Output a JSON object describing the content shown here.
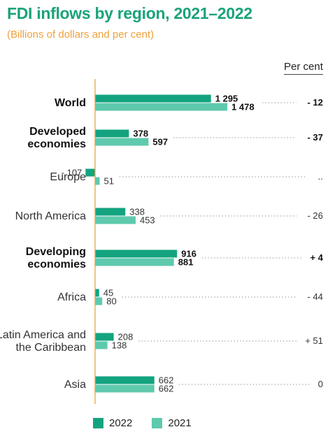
{
  "header": {
    "title": "FDI inflows by region, 2021–2022",
    "subtitle": "(Billions of dollars and per cent)",
    "pct_column_label": "Per cent"
  },
  "colors": {
    "s2022": "#14a37f",
    "s2021": "#5fc9ad",
    "axis": "#f0a13a",
    "dots": "#9a9a9a",
    "title": "#1aa37a"
  },
  "legend": [
    {
      "label": "2022",
      "color": "#14a37f"
    },
    {
      "label": "2021",
      "color": "#5fc9ad"
    }
  ],
  "chart_data": {
    "type": "bar",
    "orientation": "horizontal",
    "title": "FDI inflows by region, 2021–2022",
    "subtitle": "(Billions of dollars and per cent)",
    "xlim": [
      -107,
      1478
    ],
    "categories": [
      {
        "lines": [
          "World"
        ],
        "bold": true
      },
      {
        "lines": [
          "Developed",
          "economies"
        ],
        "bold": true
      },
      {
        "lines": [
          "Europe"
        ],
        "bold": false
      },
      {
        "lines": [
          "North America"
        ],
        "bold": false
      },
      {
        "lines": [
          "Developing",
          "economies"
        ],
        "bold": true
      },
      {
        "lines": [
          "Africa"
        ],
        "bold": false
      },
      {
        "lines": [
          "Latin America and",
          "the Caribbean"
        ],
        "bold": false
      },
      {
        "lines": [
          "Asia"
        ],
        "bold": false
      }
    ],
    "series": [
      {
        "name": "2022",
        "values": [
          1295,
          378,
          -107,
          338,
          916,
          45,
          208,
          662
        ],
        "labels": [
          "1 295",
          "378",
          "- 107",
          "338",
          "916",
          "45",
          "208",
          "662"
        ]
      },
      {
        "name": "2021",
        "values": [
          1478,
          597,
          51,
          453,
          881,
          80,
          138,
          662
        ],
        "labels": [
          "1 478",
          "597",
          "51",
          "453",
          "881",
          "80",
          "138",
          "662"
        ]
      }
    ],
    "percent_change": [
      "- 12",
      "- 37",
      "..",
      "- 26",
      "+ 4",
      "- 44",
      "+ 51",
      "0"
    ]
  }
}
